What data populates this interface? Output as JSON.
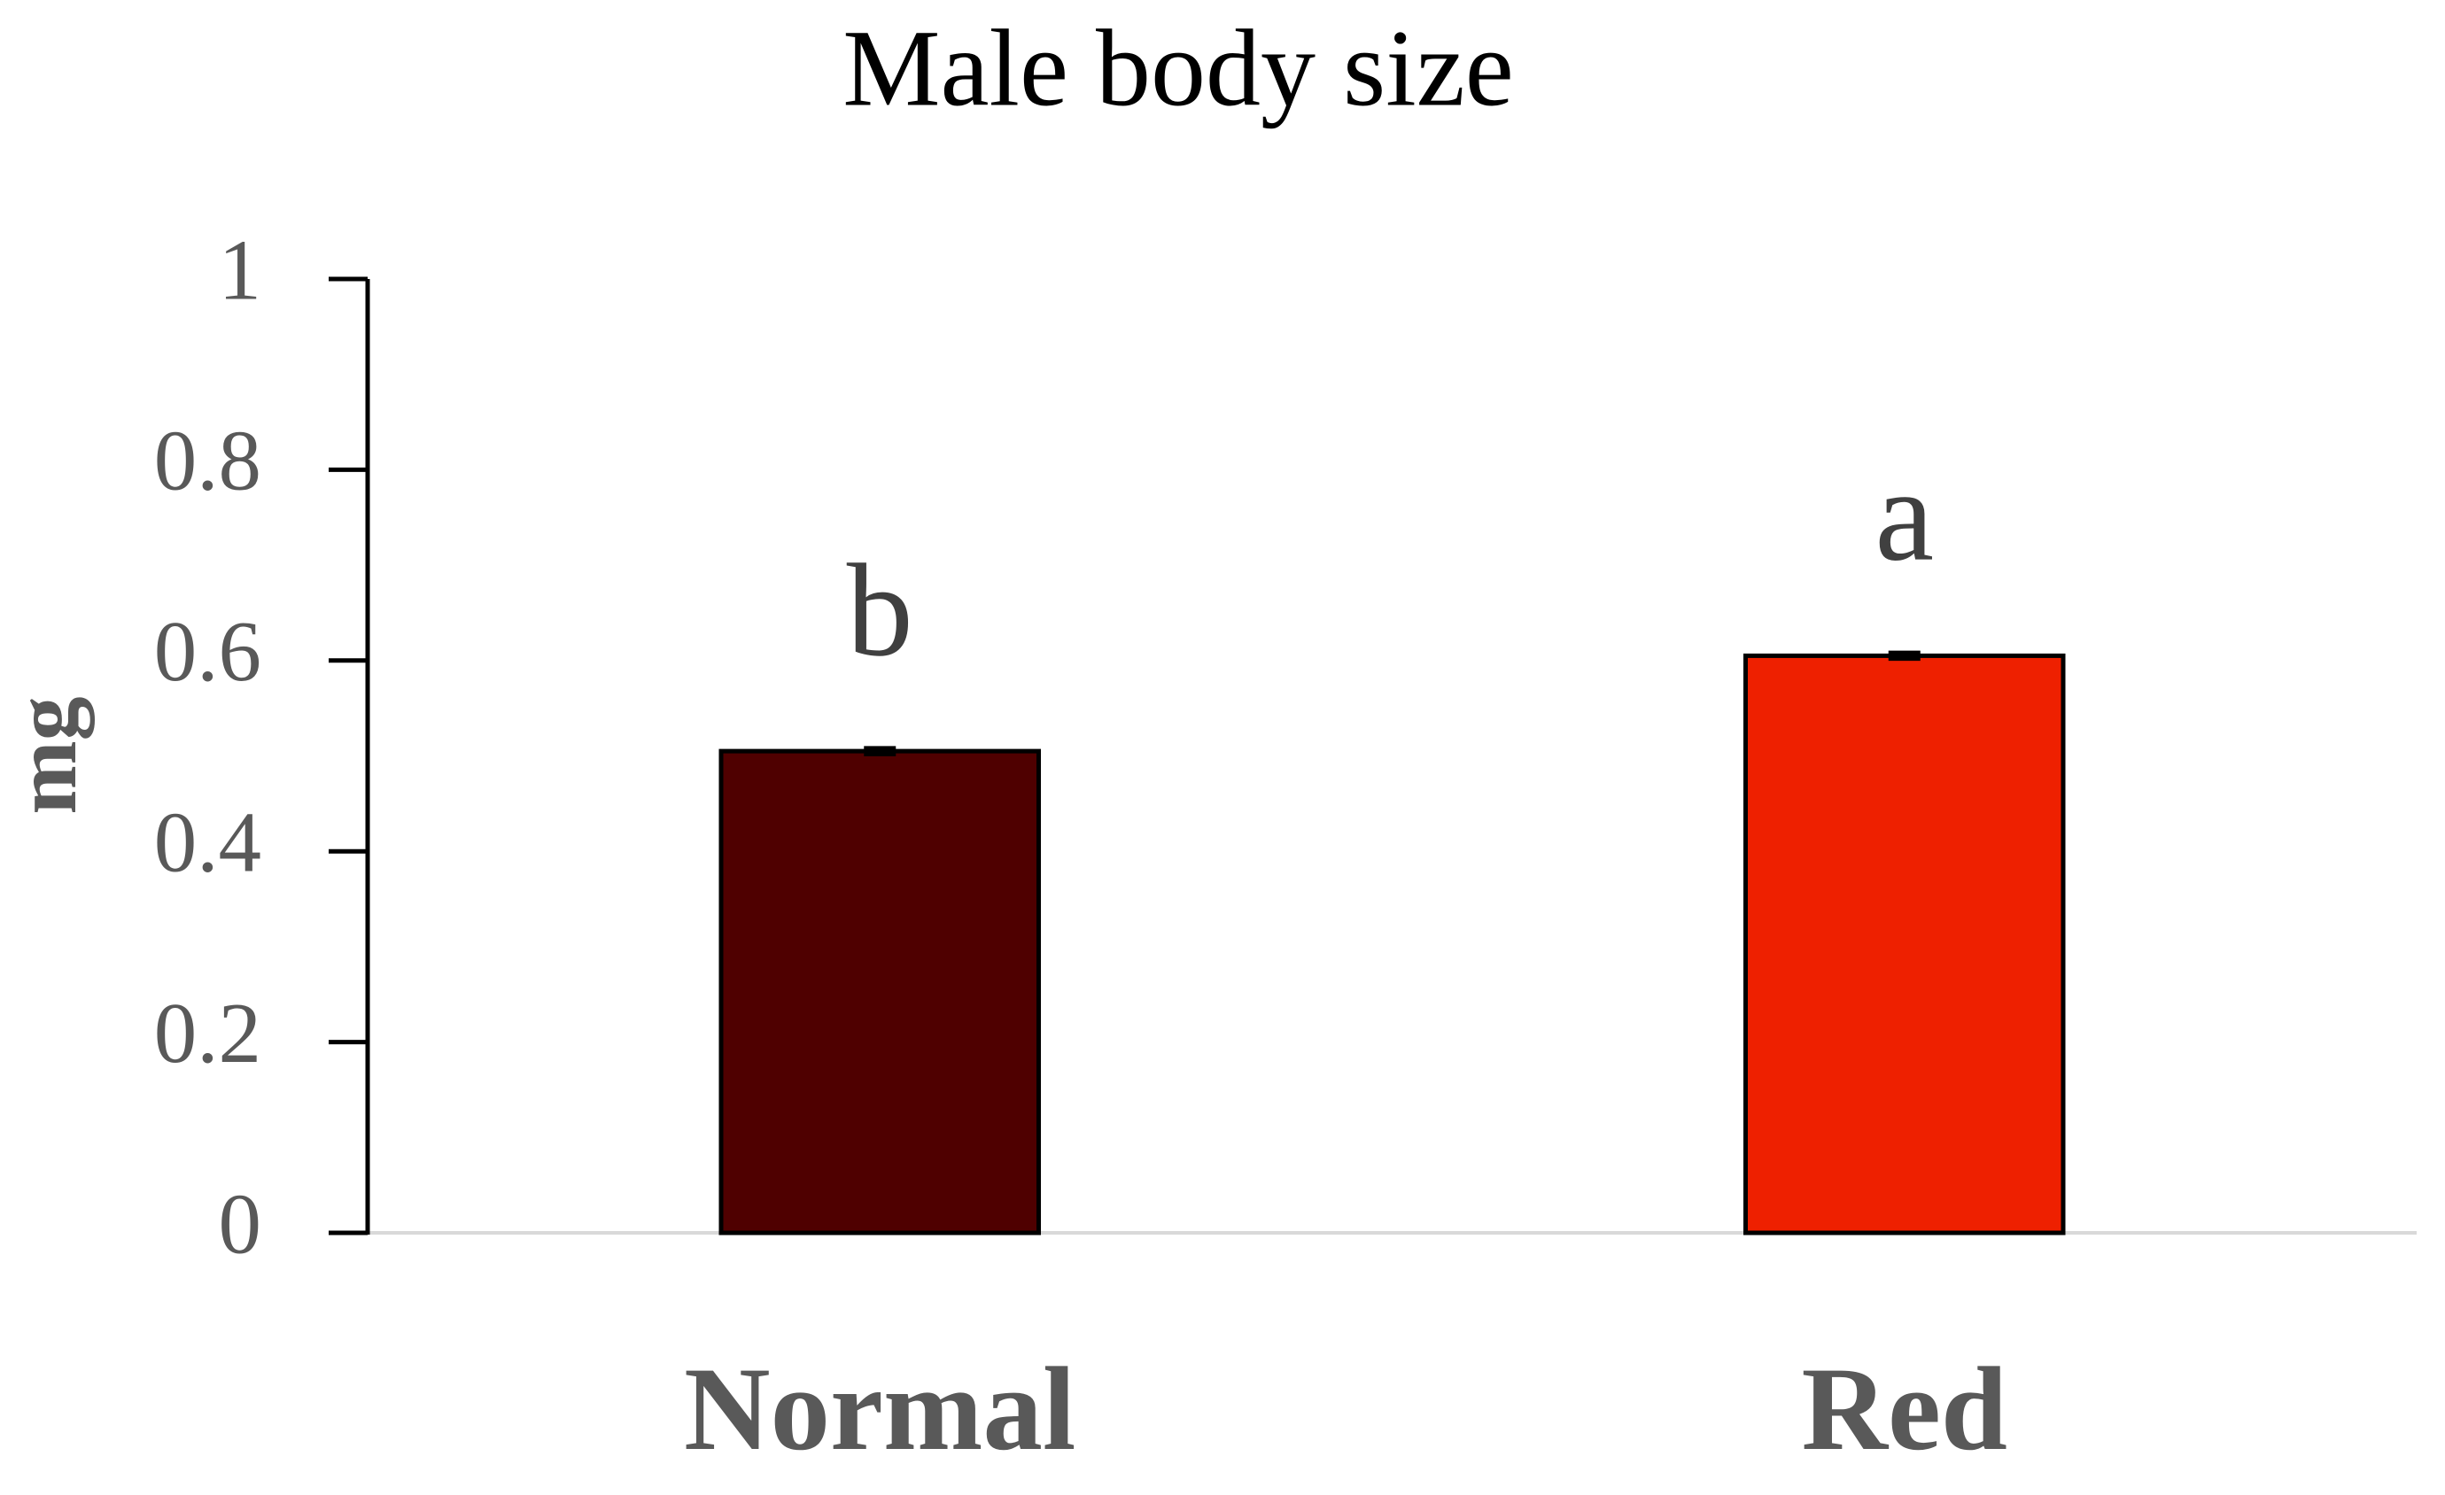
{
  "chart_data": {
    "type": "bar",
    "title": "Male body size",
    "y_label": "mg",
    "categories": [
      "Normal",
      "Red"
    ],
    "values": [
      0.505,
      0.605
    ],
    "errors": [
      0.003,
      0.003
    ],
    "annotations": [
      "b",
      "a"
    ],
    "colors": [
      "#4f0000",
      "#ee2000"
    ],
    "ylim": [
      0,
      1
    ],
    "yticks": [
      0,
      0.2,
      0.4,
      0.6,
      0.8,
      1
    ],
    "grid": false
  }
}
